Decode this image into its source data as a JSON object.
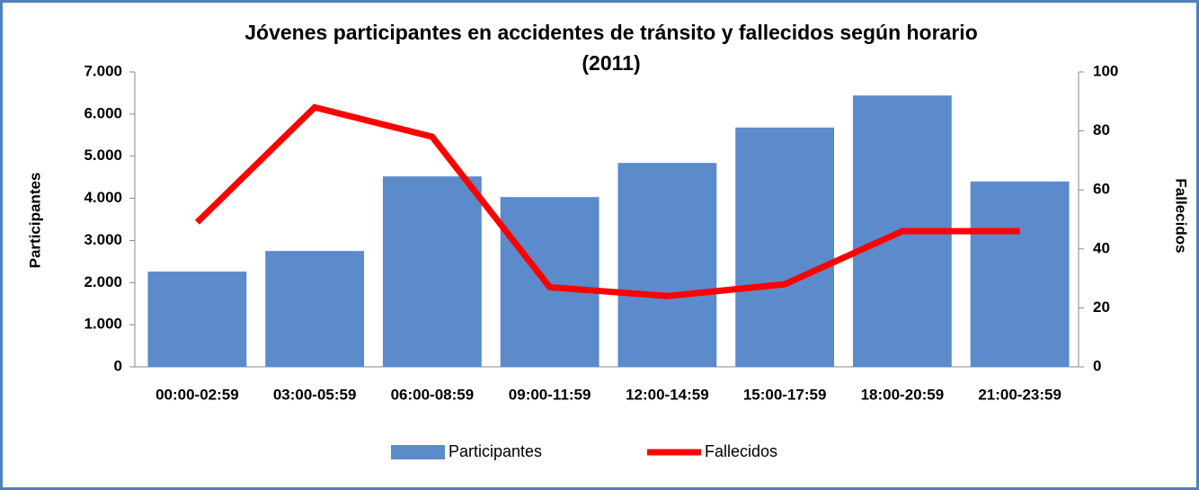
{
  "chart_data": {
    "type": "bar",
    "title": [
      "Jóvenes participantes en accidentes de tránsito y fallecidos según horario",
      "(2011)"
    ],
    "y_label": "Participantes",
    "y2_label": "Fallecidos",
    "categories": [
      "00:00-02:59",
      "03:00-05:59",
      "06:00-08:59",
      "09:00-11:59",
      "12:00-14:59",
      "15:00-17:59",
      "18:00-20:59",
      "21:00-23:59"
    ],
    "series": [
      {
        "name": "Participantes",
        "type": "bar",
        "color": "#5b8bcb",
        "values": [
          2260,
          2750,
          4520,
          4030,
          4840,
          5680,
          6440,
          4400
        ]
      },
      {
        "name": "Fallecidos",
        "type": "line",
        "axis": "y2",
        "color": "#ff0000",
        "values": [
          49,
          88,
          78,
          27,
          24,
          28,
          46,
          46
        ]
      }
    ],
    "ylim": [
      0,
      7000
    ],
    "yticks": [
      0,
      {
        "value": 1000,
        "label": "1.000"
      },
      {
        "value": 2000,
        "label": "2.000"
      },
      {
        "value": 3000,
        "label": "3.000"
      },
      {
        "value": 4000,
        "label": "4.000"
      },
      {
        "value": 5000,
        "label": "5.000"
      },
      {
        "value": 6000,
        "label": "6.000"
      },
      {
        "value": 7000,
        "label": "7.000"
      }
    ],
    "y2lim": [
      0,
      100
    ],
    "y2ticks": [
      0,
      20,
      40,
      60,
      80,
      100
    ],
    "grid": false,
    "legend": "bottom"
  }
}
